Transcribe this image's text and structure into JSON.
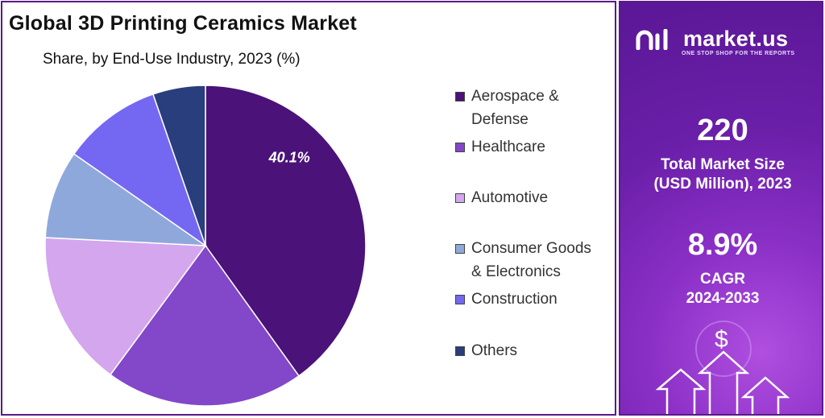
{
  "title": "Global 3D Printing Ceramics Market",
  "subtitle": "Share, by End-Use Industry, 2023 (%)",
  "chart_data": {
    "type": "pie",
    "title": "Global 3D Printing Ceramics Market",
    "subtitle": "Share, by End-Use Industry, 2023 (%)",
    "categories": [
      "Aerospace & Defense",
      "Healthcare",
      "Automotive",
      "Consumer Goods & Electronics",
      "Construction",
      "Others"
    ],
    "values": [
      40.1,
      20.0,
      15.7,
      8.9,
      10.0,
      5.3
    ],
    "colors": [
      "#4b1279",
      "#8347c9",
      "#d4a6ee",
      "#8fa8dc",
      "#7468f2",
      "#293e7c"
    ],
    "data_labels": [
      "40.1%"
    ],
    "legend_position": "right"
  },
  "legend": [
    {
      "label": "Aerospace &",
      "label2": "Defense",
      "color": "#4b1279"
    },
    {
      "label": "Healthcare",
      "label2": "",
      "color": "#8347c9"
    },
    {
      "label": "Automotive",
      "label2": "",
      "color": "#d4a6ee"
    },
    {
      "label": "Consumer Goods",
      "label2": "& Electronics",
      "color": "#8fa8dc"
    },
    {
      "label": "Construction",
      "label2": "",
      "color": "#7468f2"
    },
    {
      "label": "Others",
      "label2": "",
      "color": "#293e7c"
    }
  ],
  "sidebar": {
    "brand": "market.us",
    "tagline": "ONE STOP SHOP FOR THE REPORTS",
    "market_size_value": "220",
    "market_size_label_1": "Total Market Size",
    "market_size_label_2": "(USD Million), 2023",
    "cagr_value": "8.9%",
    "cagr_label_1": "CAGR",
    "cagr_label_2": "2024-2033",
    "dollar_symbol": "$"
  }
}
